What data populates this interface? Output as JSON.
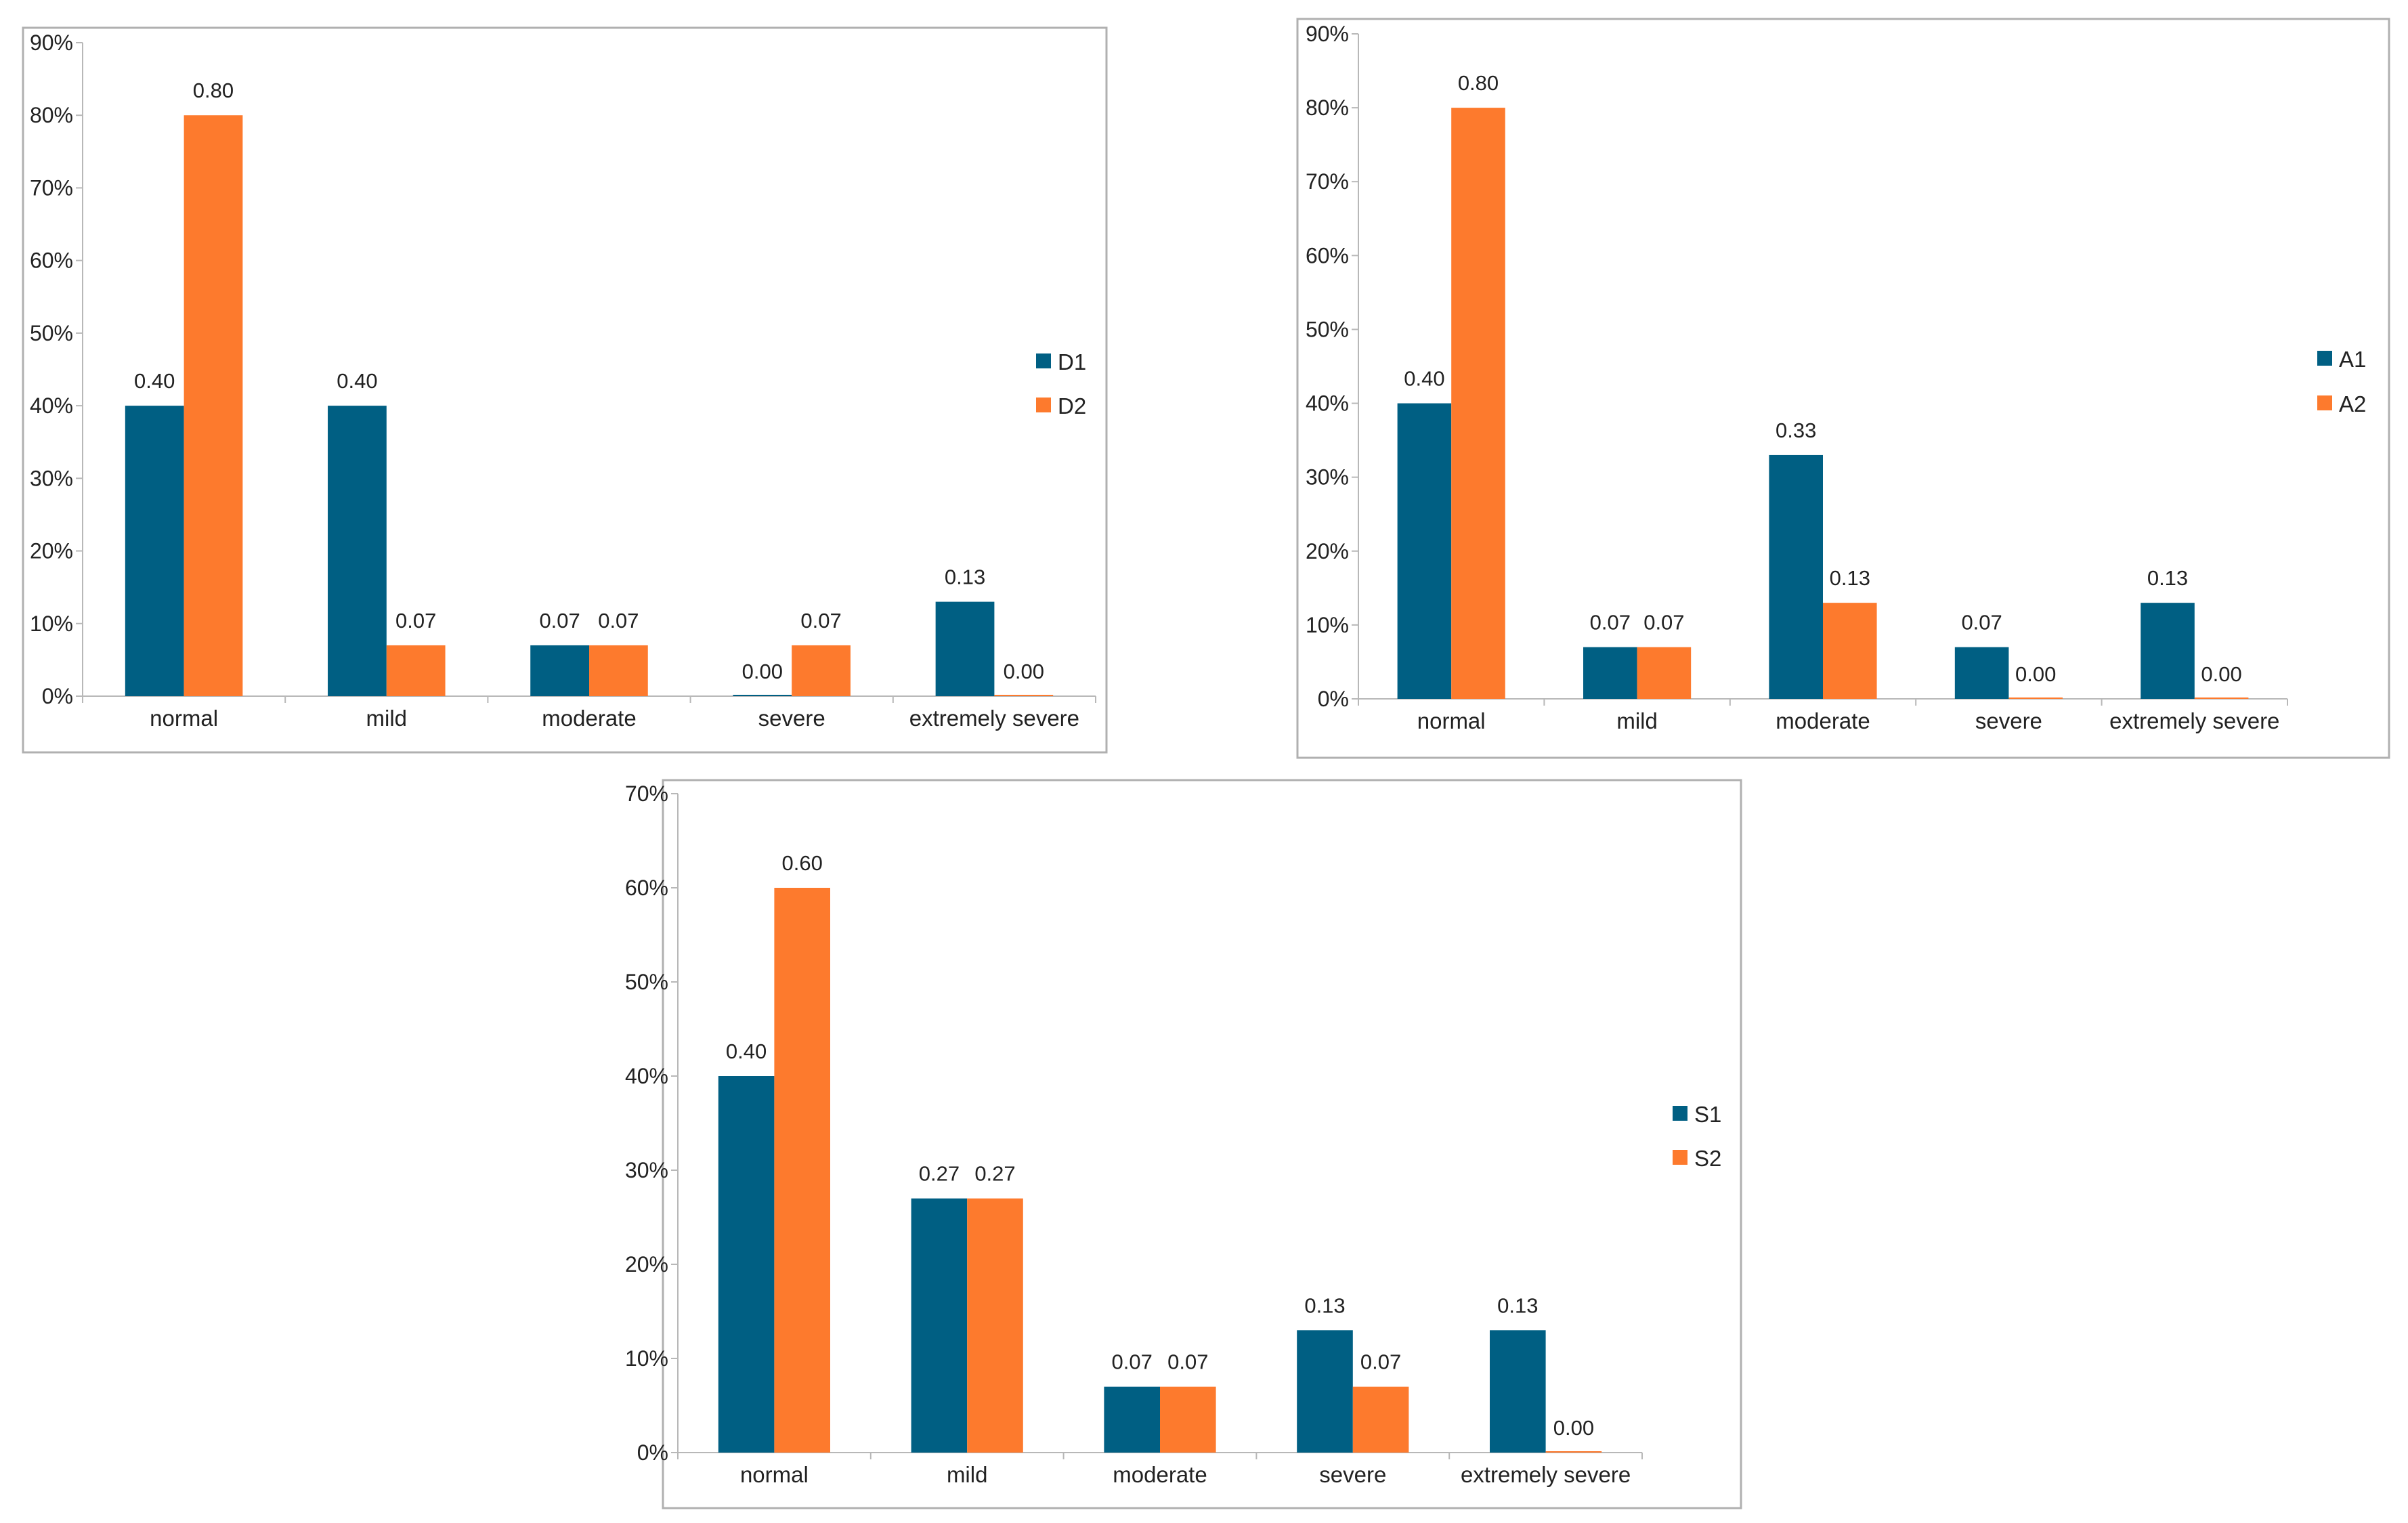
{
  "colors": {
    "series1": "#005f83",
    "series2": "#fd7a2d",
    "frame": "#b0b0b0",
    "axis": "#b8b8b8"
  },
  "chart_data": [
    {
      "type": "bar",
      "categories": [
        "normal",
        "mild",
        "moderate",
        "severe",
        "extremely severe"
      ],
      "ylim": [
        0,
        0.9
      ],
      "yticks": [
        "0%",
        "10%",
        "20%",
        "30%",
        "40%",
        "50%",
        "60%",
        "70%",
        "80%",
        "90%"
      ],
      "series": [
        {
          "name": "D1",
          "values": [
            0.4,
            0.4,
            0.07,
            0.0,
            0.13
          ],
          "labels": [
            "0.40",
            "0.40",
            "0.07",
            "0.00",
            "0.13"
          ]
        },
        {
          "name": "D2",
          "values": [
            0.8,
            0.07,
            0.07,
            0.07,
            0.0
          ],
          "labels": [
            "0.80",
            "0.07",
            "0.07",
            "0.07",
            "0.00"
          ]
        }
      ],
      "legend": "right"
    },
    {
      "type": "bar",
      "categories": [
        "normal",
        "mild",
        "moderate",
        "severe",
        "extremely severe"
      ],
      "ylim": [
        0,
        0.9
      ],
      "yticks": [
        "0%",
        "10%",
        "20%",
        "30%",
        "40%",
        "50%",
        "60%",
        "70%",
        "80%",
        "90%"
      ],
      "series": [
        {
          "name": "A1",
          "values": [
            0.4,
            0.07,
            0.33,
            0.07,
            0.13
          ],
          "labels": [
            "0.40",
            "0.07",
            "0.33",
            "0.07",
            "0.13"
          ]
        },
        {
          "name": "A2",
          "values": [
            0.8,
            0.07,
            0.13,
            0.0,
            0.0
          ],
          "labels": [
            "0.80",
            "0.07",
            "0.13",
            "0.00",
            "0.00"
          ]
        }
      ],
      "legend": "right"
    },
    {
      "type": "bar",
      "categories": [
        "normal",
        "mild",
        "moderate",
        "severe",
        "extremely severe"
      ],
      "ylim": [
        0,
        0.7
      ],
      "yticks": [
        "0%",
        "10%",
        "20%",
        "30%",
        "40%",
        "50%",
        "60%",
        "70%"
      ],
      "series": [
        {
          "name": "S1",
          "values": [
            0.4,
            0.27,
            0.07,
            0.13,
            0.13
          ],
          "labels": [
            "0.40",
            "0.27",
            "0.07",
            "0.13",
            "0.13"
          ]
        },
        {
          "name": "S2",
          "values": [
            0.6,
            0.27,
            0.07,
            0.07,
            0.0
          ],
          "labels": [
            "0.60",
            "0.27",
            "0.07",
            "0.07",
            "0.00"
          ]
        }
      ],
      "legend": "right"
    }
  ]
}
